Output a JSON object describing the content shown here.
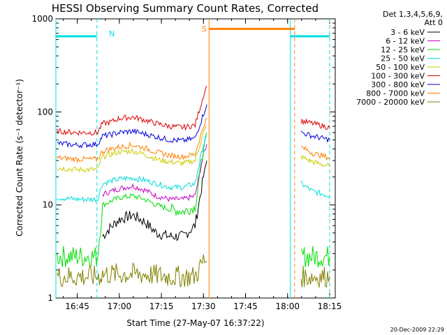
{
  "chart_data": {
    "type": "line",
    "title": "HESSI Observing Summary Count Rates, Corrected",
    "xlabel": "Start Time (27-May-07 16:37:22)",
    "ylabel": "Corrected Count Rate (s⁻¹ detector⁻¹)",
    "y_scale": "log",
    "ylim": [
      1,
      1000
    ],
    "xlim": [
      "16:37:22",
      "18:17:00"
    ],
    "x_ticks": [
      "16:45",
      "17:00",
      "17:15",
      "17:30",
      "17:45",
      "18:00",
      "18:15"
    ],
    "y_ticks": [
      "1",
      "10",
      "100",
      "1000"
    ],
    "legend_title": [
      "Det 1,3,4,5,6,9,",
      "Att 0"
    ],
    "legend_position": "right",
    "footer_date": "20-Dec-2009 22:29",
    "annotations": {
      "night_label": "N",
      "saa_label": "S",
      "night_start": [
        "16:37:22",
        "18:01:00"
      ],
      "night_end": [
        "16:52:00",
        "18:15:00"
      ],
      "saa_start": "17:32:00",
      "saa_end": "18:02:30"
    },
    "series": [
      {
        "name": "3 - 6 keV",
        "color": "#000000",
        "values": [
          [
            16.9,
            4.6
          ],
          [
            16.95,
            5.8
          ],
          [
            17.0,
            7.0
          ],
          [
            17.08,
            7.8
          ],
          [
            17.15,
            6.6
          ],
          [
            17.22,
            5.0
          ],
          [
            17.3,
            4.6
          ],
          [
            17.38,
            4.6
          ],
          [
            17.45,
            6.0
          ],
          [
            17.5,
            20.0
          ],
          [
            17.52,
            30.0
          ]
        ]
      },
      {
        "name": "6 - 12 keV",
        "color": "#cc00cc",
        "values": [
          [
            16.9,
            13.0
          ],
          [
            16.95,
            14.0
          ],
          [
            17.0,
            15.0
          ],
          [
            17.08,
            16.0
          ],
          [
            17.15,
            14.5
          ],
          [
            17.22,
            12.5
          ],
          [
            17.3,
            11.5
          ],
          [
            17.38,
            11.5
          ],
          [
            17.45,
            12.5
          ],
          [
            17.5,
            35.0
          ],
          [
            17.52,
            45.0
          ]
        ]
      },
      {
        "name": "12 - 25 keV",
        "color": "#00dd00",
        "values": [
          [
            16.63,
            2.8
          ],
          [
            16.75,
            2.8
          ],
          [
            16.82,
            2.8
          ],
          [
            16.87,
            2.8
          ],
          [
            16.9,
            10.0
          ],
          [
            16.95,
            11.0
          ],
          [
            17.0,
            12.0
          ],
          [
            17.08,
            12.5
          ],
          [
            17.15,
            11.5
          ],
          [
            17.22,
            10.0
          ],
          [
            17.3,
            9.0
          ],
          [
            17.38,
            8.5
          ],
          [
            17.45,
            9.5
          ],
          [
            17.5,
            40.0
          ],
          [
            17.52,
            60.0
          ],
          [
            18.08,
            2.8
          ],
          [
            18.2,
            2.8
          ],
          [
            18.25,
            2.8
          ]
        ]
      },
      {
        "name": "25 - 50 keV",
        "color": "#00dddd",
        "values": [
          [
            16.63,
            12.0
          ],
          [
            16.75,
            11.5
          ],
          [
            16.87,
            11.5
          ],
          [
            16.9,
            17.0
          ],
          [
            16.95,
            18.0
          ],
          [
            17.0,
            19.0
          ],
          [
            17.08,
            19.5
          ],
          [
            17.15,
            18.5
          ],
          [
            17.22,
            17.0
          ],
          [
            17.3,
            15.5
          ],
          [
            17.38,
            15.5
          ],
          [
            17.45,
            17.0
          ],
          [
            17.5,
            45.0
          ],
          [
            17.52,
            55.0
          ],
          [
            18.08,
            17.0
          ],
          [
            18.15,
            14.0
          ],
          [
            18.25,
            12.5
          ]
        ]
      },
      {
        "name": "50 - 100 keV",
        "color": "#cccc00",
        "values": [
          [
            16.63,
            25.0
          ],
          [
            16.75,
            24.0
          ],
          [
            16.87,
            24.0
          ],
          [
            16.9,
            33.0
          ],
          [
            16.95,
            35.0
          ],
          [
            17.0,
            37.0
          ],
          [
            17.08,
            38.0
          ],
          [
            17.15,
            35.0
          ],
          [
            17.22,
            31.0
          ],
          [
            17.3,
            29.0
          ],
          [
            17.38,
            28.0
          ],
          [
            17.45,
            30.0
          ],
          [
            17.5,
            60.0
          ],
          [
            17.52,
            70.0
          ],
          [
            18.08,
            33.0
          ],
          [
            18.15,
            29.0
          ],
          [
            18.25,
            26.0
          ]
        ]
      },
      {
        "name": "100 - 300 keV",
        "color": "#dd0000",
        "values": [
          [
            16.63,
            62.0
          ],
          [
            16.75,
            60.0
          ],
          [
            16.87,
            60.0
          ],
          [
            16.9,
            75.0
          ],
          [
            16.95,
            78.0
          ],
          [
            17.0,
            85.0
          ],
          [
            17.08,
            88.0
          ],
          [
            17.15,
            82.0
          ],
          [
            17.22,
            75.0
          ],
          [
            17.3,
            70.0
          ],
          [
            17.38,
            68.0
          ],
          [
            17.45,
            72.0
          ],
          [
            17.5,
            150.0
          ],
          [
            17.52,
            190.0
          ],
          [
            18.08,
            80.0
          ],
          [
            18.15,
            75.0
          ],
          [
            18.25,
            68.0
          ]
        ]
      },
      {
        "name": "300 - 800 keV",
        "color": "#0000dd",
        "values": [
          [
            16.63,
            46.0
          ],
          [
            16.75,
            44.0
          ],
          [
            16.87,
            45.0
          ],
          [
            16.9,
            55.0
          ],
          [
            16.95,
            57.0
          ],
          [
            17.0,
            60.0
          ],
          [
            17.08,
            62.0
          ],
          [
            17.15,
            58.0
          ],
          [
            17.22,
            54.0
          ],
          [
            17.3,
            50.0
          ],
          [
            17.38,
            49.0
          ],
          [
            17.45,
            52.0
          ],
          [
            17.5,
            95.0
          ],
          [
            17.52,
            120.0
          ],
          [
            18.08,
            60.0
          ],
          [
            18.15,
            55.0
          ],
          [
            18.25,
            50.0
          ]
        ]
      },
      {
        "name": "800 - 7000 keV",
        "color": "#ff8000",
        "values": [
          [
            16.63,
            32.0
          ],
          [
            16.75,
            31.0
          ],
          [
            16.87,
            31.0
          ],
          [
            16.9,
            38.0
          ],
          [
            16.95,
            40.0
          ],
          [
            17.0,
            42.0
          ],
          [
            17.08,
            44.0
          ],
          [
            17.15,
            41.0
          ],
          [
            17.22,
            37.0
          ],
          [
            17.3,
            34.0
          ],
          [
            17.38,
            33.0
          ],
          [
            17.45,
            35.0
          ],
          [
            17.5,
            70.0
          ],
          [
            17.52,
            85.0
          ],
          [
            18.08,
            42.0
          ],
          [
            18.15,
            36.0
          ],
          [
            18.25,
            32.0
          ]
        ]
      },
      {
        "name": "7000 - 20000 keV",
        "color": "#808000",
        "values": [
          [
            16.63,
            1.7
          ],
          [
            16.75,
            1.7
          ],
          [
            16.87,
            1.7
          ],
          [
            16.9,
            1.8
          ],
          [
            17.0,
            1.8
          ],
          [
            17.15,
            1.8
          ],
          [
            17.3,
            1.7
          ],
          [
            17.45,
            1.7
          ],
          [
            17.5,
            2.5
          ],
          [
            17.52,
            2.5
          ],
          [
            18.08,
            1.7
          ],
          [
            18.2,
            1.7
          ],
          [
            18.25,
            1.7
          ]
        ]
      }
    ],
    "saa_bar": {
      "color": "#ff8000"
    },
    "night_bar": {
      "color": "#00dddd"
    }
  }
}
